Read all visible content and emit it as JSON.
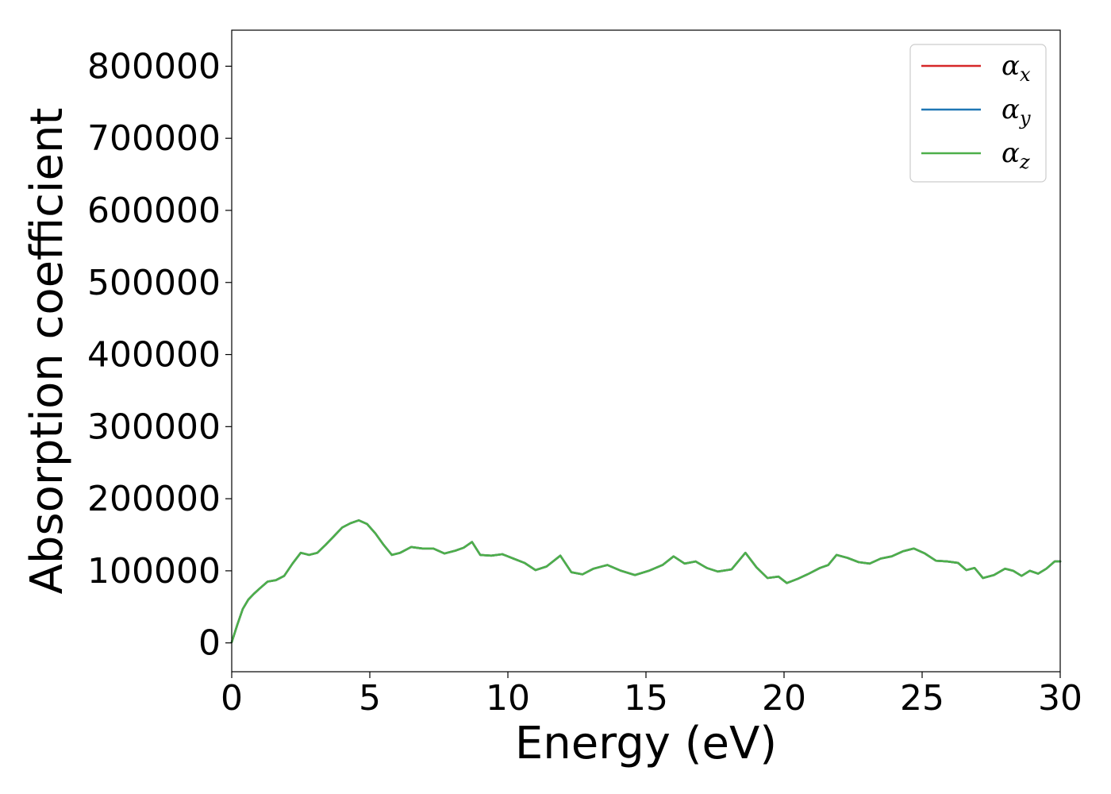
{
  "chart_data": {
    "type": "line",
    "title": "",
    "xlabel": "Energy (eV)",
    "ylabel": "Absorption coefficient",
    "xlim": [
      0,
      30
    ],
    "ylim": [
      -40000,
      850000
    ],
    "xticks": [
      0,
      5,
      10,
      15,
      20,
      25,
      30
    ],
    "xtick_labels": [
      "0",
      "5",
      "10",
      "15",
      "20",
      "25",
      "30"
    ],
    "yticks": [
      0,
      100000,
      200000,
      300000,
      400000,
      500000,
      600000,
      700000,
      800000
    ],
    "ytick_labels": [
      "0",
      "100000",
      "200000",
      "300000",
      "400000",
      "500000",
      "600000",
      "700000",
      "800000"
    ],
    "grid": false,
    "legend_position": "top-right",
    "x": [
      0,
      0.2,
      0.4,
      0.6,
      0.8,
      1.0,
      1.3,
      1.6,
      1.9,
      2.2,
      2.5,
      2.8,
      3.1,
      3.4,
      3.7,
      4.0,
      4.3,
      4.6,
      4.9,
      5.2,
      5.5,
      5.8,
      6.1,
      6.5,
      6.9,
      7.3,
      7.7,
      8.1,
      8.4,
      8.7,
      9.0,
      9.4,
      9.8,
      10.2,
      10.6,
      11.0,
      11.4,
      11.9,
      12.3,
      12.7,
      13.1,
      13.6,
      14.1,
      14.6,
      15.1,
      15.6,
      16.0,
      16.4,
      16.8,
      17.2,
      17.6,
      18.1,
      18.6,
      19.0,
      19.4,
      19.8,
      20.1,
      20.5,
      20.9,
      21.3,
      21.6,
      21.9,
      22.3,
      22.7,
      23.1,
      23.5,
      23.9,
      24.3,
      24.7,
      25.1,
      25.5,
      25.9,
      26.3,
      26.6,
      26.9,
      27.2,
      27.6,
      28.0,
      28.3,
      28.6,
      28.9,
      29.2,
      29.5,
      29.8,
      30.0
    ],
    "series": [
      {
        "name": "α_x",
        "color": "#d62728",
        "values": [
          1000,
          25000,
          47000,
          60000,
          68000,
          75000,
          85000,
          87000,
          93000,
          110000,
          125000,
          122000,
          125000,
          136000,
          148000,
          160000,
          166000,
          170000,
          165000,
          152000,
          136000,
          122000,
          125000,
          133000,
          131000,
          131000,
          124000,
          128000,
          132000,
          140000,
          122000,
          121000,
          123000,
          117000,
          111000,
          101000,
          106000,
          121000,
          98000,
          95000,
          103000,
          108000,
          100000,
          94000,
          100000,
          108000,
          120000,
          110000,
          113000,
          104000,
          99000,
          102000,
          125000,
          105000,
          90000,
          92000,
          83000,
          89000,
          96000,
          104000,
          108000,
          122000,
          118000,
          112000,
          110000,
          117000,
          120000,
          127000,
          131000,
          124000,
          114000,
          113000,
          111000,
          101000,
          104000,
          90000,
          94000,
          103000,
          100000,
          93000,
          100000,
          96000,
          103000,
          113000,
          113000
        ]
      },
      {
        "name": "α_y",
        "color": "#1f77b4",
        "values": [
          1000,
          25000,
          47000,
          60000,
          68000,
          75000,
          85000,
          87000,
          93000,
          110000,
          125000,
          122000,
          125000,
          136000,
          148000,
          160000,
          166000,
          170000,
          165000,
          152000,
          136000,
          122000,
          125000,
          133000,
          131000,
          131000,
          124000,
          128000,
          132000,
          140000,
          122000,
          121000,
          123000,
          117000,
          111000,
          101000,
          106000,
          121000,
          98000,
          95000,
          103000,
          108000,
          100000,
          94000,
          100000,
          108000,
          120000,
          110000,
          113000,
          104000,
          99000,
          102000,
          125000,
          105000,
          90000,
          92000,
          83000,
          89000,
          96000,
          104000,
          108000,
          122000,
          118000,
          112000,
          110000,
          117000,
          120000,
          127000,
          131000,
          124000,
          114000,
          113000,
          111000,
          101000,
          104000,
          90000,
          94000,
          103000,
          100000,
          93000,
          100000,
          96000,
          103000,
          113000,
          113000
        ]
      },
      {
        "name": "α_z",
        "color": "#4daf4a",
        "values": [
          1000,
          25000,
          47000,
          60000,
          68000,
          75000,
          85000,
          87000,
          93000,
          110000,
          125000,
          122000,
          125000,
          136000,
          148000,
          160000,
          166000,
          170000,
          165000,
          152000,
          136000,
          122000,
          125000,
          133000,
          131000,
          131000,
          124000,
          128000,
          132000,
          140000,
          122000,
          121000,
          123000,
          117000,
          111000,
          101000,
          106000,
          121000,
          98000,
          95000,
          103000,
          108000,
          100000,
          94000,
          100000,
          108000,
          120000,
          110000,
          113000,
          104000,
          99000,
          102000,
          125000,
          105000,
          90000,
          92000,
          83000,
          89000,
          96000,
          104000,
          108000,
          122000,
          118000,
          112000,
          110000,
          117000,
          120000,
          127000,
          131000,
          124000,
          114000,
          113000,
          111000,
          101000,
          104000,
          90000,
          94000,
          103000,
          100000,
          93000,
          100000,
          96000,
          103000,
          113000,
          113000
        ]
      }
    ],
    "legend": [
      {
        "symbol": "α",
        "sub": "x",
        "color": "#d62728"
      },
      {
        "symbol": "α",
        "sub": "y",
        "color": "#1f77b4"
      },
      {
        "symbol": "α",
        "sub": "z",
        "color": "#4daf4a"
      }
    ]
  }
}
